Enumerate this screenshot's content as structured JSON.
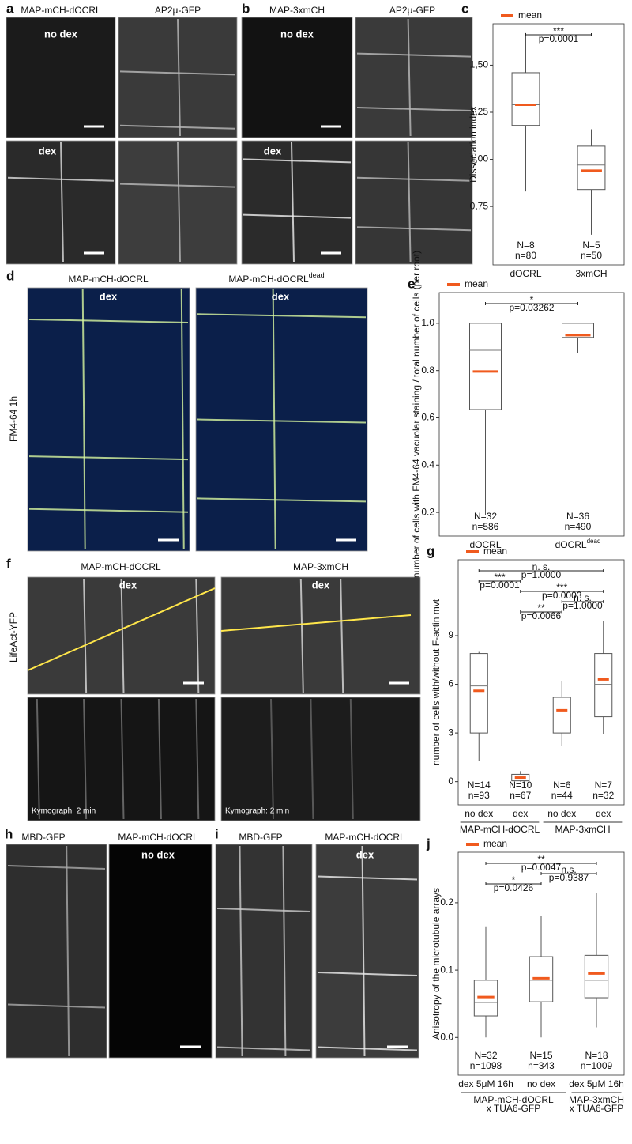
{
  "panels": {
    "a": {
      "letter": "a",
      "col1": "MAP-mCH-dOCRL",
      "col2": "AP2μ-GFP",
      "row1": "no dex",
      "row2": "dex"
    },
    "b": {
      "letter": "b",
      "col1": "MAP-3xmCH",
      "col2": "AP2μ-GFP",
      "row1": "no dex",
      "row2": "dex"
    },
    "d": {
      "letter": "d",
      "col1": "MAP-mCH-dOCRL",
      "col2": "MAP-mCH-dOCRL",
      "col2_sup": "dead",
      "tag1": "dex",
      "tag2": "dex",
      "side": "FM4-64 1h"
    },
    "f": {
      "letter": "f",
      "col1": "MAP-mCH-dOCRL",
      "col2": "MAP-3xmCH",
      "tag1": "dex",
      "tag2": "dex",
      "side": "LifeAct-YFP",
      "kymo1": "Kymograph: 2 min",
      "kymo2": "Kymograph: 2 min"
    },
    "h": {
      "letter": "h",
      "col1": "MBD-GFP",
      "col2": "MAP-mCH-dOCRL",
      "tag": "no dex"
    },
    "i": {
      "letter": "i",
      "col1": "MBD-GFP",
      "col2": "MAP-mCH-dOCRL",
      "tag": "dex"
    }
  },
  "chart_data": [
    {
      "type": "box",
      "letter": "c",
      "y_label": "Dissociation index",
      "legend": "mean",
      "mean_color": "#f05a1e",
      "label_color": "#1a1aff",
      "ylim": [
        0.44,
        1.72
      ],
      "yticks": [
        {
          "value": 0.75,
          "label": "0,75"
        },
        {
          "value": 1,
          "label": "1,00"
        },
        {
          "value": 1.25,
          "label": "1,25"
        },
        {
          "value": 1.5,
          "label": "1,50"
        }
      ],
      "categories": [
        "dOCRL",
        "3xmCH"
      ],
      "N_labels": [
        "N=8",
        "N=5"
      ],
      "n_labels": [
        "n=80",
        "n=50"
      ],
      "q1": [
        1.18,
        0.84
      ],
      "median": [
        1.29,
        0.97
      ],
      "q3": [
        1.46,
        1.07
      ],
      "whisker_low": [
        0.83,
        0.6
      ],
      "whisker_high": [
        1.67,
        1.16
      ],
      "mean": [
        1.29,
        0.94
      ],
      "comparisons": [
        {
          "groups": [
            0,
            1
          ],
          "stars": "***",
          "p": "p=0.0001"
        }
      ]
    },
    {
      "type": "box",
      "letter": "e",
      "y_label": "number of cells with FM4-64 vacuolar staining / total number of cells (per root)",
      "legend": "mean",
      "mean_color": "#f05a1e",
      "label_color": "#1a1aff",
      "ylim": [
        0.1,
        1.13
      ],
      "yticks": [
        0.2,
        0.4,
        0.6,
        0.8,
        {
          "value": 1,
          "label": "1.0"
        }
      ],
      "categories": [
        "dOCRL",
        "dOCRL"
      ],
      "category_sup": {
        "1": "dead"
      },
      "N_labels": [
        "N=32",
        "N=36"
      ],
      "n_labels": [
        "n=586",
        "n=490"
      ],
      "q1": [
        0.635,
        0.94
      ],
      "median": [
        0.886,
        1
      ],
      "q3": [
        1,
        1
      ],
      "whisker_low": [
        0.19,
        0.876
      ],
      "whisker_high": [
        1,
        1
      ],
      "mean": [
        0.796,
        0.95
      ],
      "comparisons": [
        {
          "groups": [
            0,
            1
          ],
          "stars": "*",
          "p": "p=0.03262"
        }
      ]
    },
    {
      "type": "box",
      "letter": "g",
      "y_label": "number of cells with/without F-actin mvt",
      "legend": "mean",
      "mean_color": "#f05a1e",
      "label_color": "#1a1aff",
      "ylim": [
        -1.43,
        13.68
      ],
      "yticks": [
        0,
        3,
        6,
        9
      ],
      "categories": [
        "no dex",
        "dex",
        "no dex",
        "dex"
      ],
      "group_labels": [
        {
          "lines": [
            "MAP-mCH-dOCRL"
          ],
          "span": [
            0,
            1
          ]
        },
        {
          "lines": [
            "MAP-3xmCH"
          ],
          "span": [
            2,
            3
          ]
        }
      ],
      "N_labels": [
        "N=14",
        "N=10",
        "N=6",
        "N=7"
      ],
      "n_labels": [
        "n=93",
        "n=67",
        "n=44",
        "n=32"
      ],
      "q1": [
        3,
        0.05,
        3,
        4
      ],
      "median": [
        5.9,
        0.1,
        4.1,
        6
      ],
      "q3": [
        7.9,
        0.45,
        5.2,
        7.9
      ],
      "whisker_low": [
        1.3,
        0,
        2.2,
        2.95
      ],
      "whisker_high": [
        8,
        0.65,
        6.2,
        9.9
      ],
      "mean": [
        5.6,
        0.25,
        4.4,
        6.3
      ],
      "comparisons": [
        {
          "groups": [
            0,
            3
          ],
          "stars": "n. s.",
          "p": "p=1.0000"
        },
        {
          "groups": [
            0,
            1
          ],
          "stars": "***",
          "p": "p=0.0001"
        },
        {
          "groups": [
            1,
            3
          ],
          "stars": "***",
          "p": "p=0.0003"
        },
        {
          "groups": [
            2,
            3
          ],
          "stars": "n. s.",
          "p": "p=1.0000"
        },
        {
          "groups": [
            1,
            2
          ],
          "stars": "**",
          "p": "p=0.0066"
        }
      ]
    },
    {
      "type": "box",
      "letter": "j",
      "y_label": "Anisotropy of the microtubule arrays",
      "legend": "mean",
      "mean_color": "#f05a1e",
      "label_color": "#1a1aff",
      "ylim": [
        -0.056,
        0.275
      ],
      "yticks": [
        {
          "value": 0,
          "label": "0.0"
        },
        0.1,
        0.2
      ],
      "categories": [
        "dex 5μM 16h",
        "no dex",
        "dex 5μM 16h"
      ],
      "group_labels": [
        {
          "lines": [
            "MAP-mCH-dOCRL",
            "x TUA6-GFP"
          ],
          "span": [
            0,
            1
          ]
        },
        {
          "lines": [
            "MAP-3xmCH",
            "x TUA6-GFP"
          ],
          "span": [
            2,
            2
          ]
        }
      ],
      "N_labels": [
        "N=32",
        "N=15",
        "N=18"
      ],
      "n_labels": [
        "n=1098",
        "n=343",
        "n=1009"
      ],
      "q1": [
        0.032,
        0.053,
        0.059
      ],
      "median": [
        0.052,
        0.085,
        0.085
      ],
      "q3": [
        0.085,
        0.12,
        0.122
      ],
      "whisker_low": [
        0,
        0,
        0.015
      ],
      "whisker_high": [
        0.165,
        0.18,
        0.215
      ],
      "mean": [
        0.06,
        0.088,
        0.095
      ],
      "comparisons": [
        {
          "groups": [
            0,
            2
          ],
          "stars": "**",
          "p": "p=0.0047"
        },
        {
          "groups": [
            1,
            2
          ],
          "stars": "n.s.",
          "p": "p=0.9387"
        },
        {
          "groups": [
            0,
            1
          ],
          "stars": "*",
          "p": "p=0.0426"
        }
      ]
    }
  ]
}
